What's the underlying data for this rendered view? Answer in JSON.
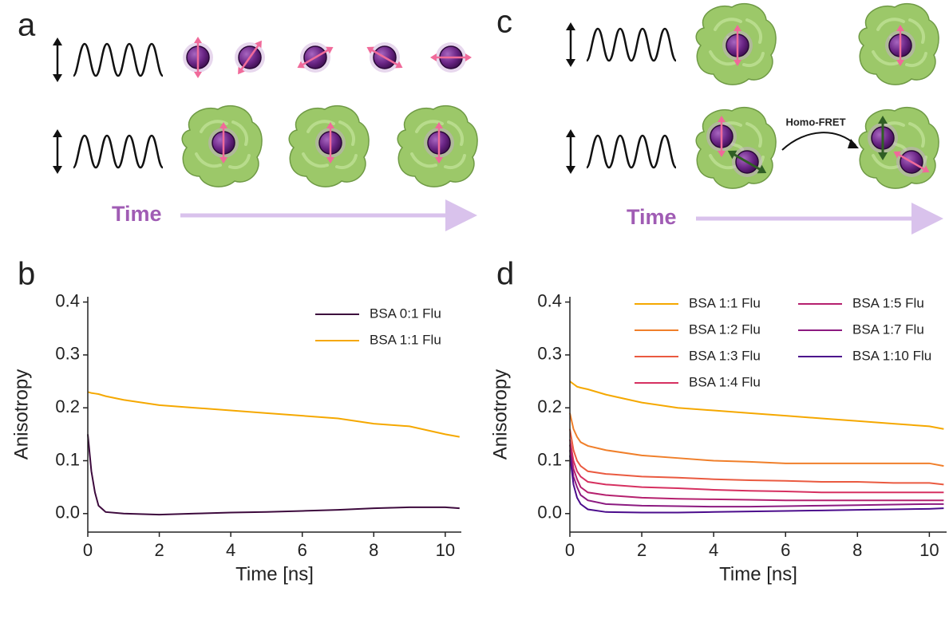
{
  "panel_labels": [
    "a",
    "b",
    "c",
    "d"
  ],
  "diagrams": {
    "a": {
      "time_label": "Time"
    },
    "c": {
      "time_label": "Time",
      "transfer_label": "Homo-FRET"
    }
  },
  "chart_data": [
    {
      "type": "line",
      "x_label": "Time [ns]",
      "y_label": "Anisotropy",
      "legend": "upper right",
      "x": [
        0,
        0.1,
        0.2,
        0.3,
        0.5,
        1,
        2,
        3,
        4,
        5,
        6,
        7,
        8,
        9,
        10,
        10.4
      ],
      "xlim": [
        0,
        10.45
      ],
      "xticks": [
        0,
        2,
        4,
        6,
        8,
        10
      ],
      "ylim": [
        -0.035,
        0.41
      ],
      "yticks": [
        {
          "value": 0,
          "label": "0.0"
        },
        0.1,
        0.2,
        0.3,
        0.4
      ],
      "series": [
        {
          "name": "BSA 0:1 Flu",
          "color": "#3d0a3d",
          "values": [
            0.15,
            0.08,
            0.04,
            0.015,
            0.003,
            0,
            -0.002,
            0,
            0.002,
            0.003,
            0.005,
            0.007,
            0.01,
            0.012,
            0.012,
            0.01
          ]
        },
        {
          "name": "BSA 1:1 Flu",
          "color": "#f5a800",
          "values": [
            0.23,
            0.228,
            0.227,
            0.226,
            0.222,
            0.215,
            0.205,
            0.2,
            0.195,
            0.19,
            0.185,
            0.18,
            0.17,
            0.165,
            0.15,
            0.145
          ]
        }
      ]
    },
    {
      "type": "line",
      "x_label": "Time [ns]",
      "y_label": "Anisotropy",
      "legend": "upper right",
      "x": [
        0,
        0.1,
        0.2,
        0.3,
        0.5,
        1,
        2,
        3,
        4,
        5,
        6,
        7,
        8,
        9,
        10,
        10.4
      ],
      "xlim": [
        0,
        10.48
      ],
      "xticks": [
        0,
        2,
        4,
        6,
        8,
        10
      ],
      "ylim": [
        -0.035,
        0.41
      ],
      "yticks": [
        {
          "value": 0,
          "label": "0.0"
        },
        0.1,
        0.2,
        0.3,
        0.4
      ],
      "series": [
        {
          "name": "BSA 1:1 Flu",
          "color": "#f5a800",
          "values": [
            0.25,
            0.245,
            0.24,
            0.238,
            0.235,
            0.225,
            0.21,
            0.2,
            0.195,
            0.19,
            0.185,
            0.18,
            0.175,
            0.17,
            0.165,
            0.16
          ]
        },
        {
          "name": "BSA 1:2 Flu",
          "color": "#f07f2a",
          "values": [
            0.19,
            0.16,
            0.145,
            0.135,
            0.128,
            0.12,
            0.11,
            0.105,
            0.1,
            0.098,
            0.095,
            0.095,
            0.095,
            0.095,
            0.095,
            0.09
          ]
        },
        {
          "name": "BSA 1:3 Flu",
          "color": "#ea5a40",
          "values": [
            0.16,
            0.12,
            0.1,
            0.09,
            0.08,
            0.075,
            0.07,
            0.068,
            0.065,
            0.063,
            0.062,
            0.06,
            0.06,
            0.058,
            0.058,
            0.055
          ]
        },
        {
          "name": "BSA 1:4 Flu",
          "color": "#d63060",
          "values": [
            0.14,
            0.1,
            0.08,
            0.07,
            0.06,
            0.055,
            0.05,
            0.048,
            0.045,
            0.043,
            0.042,
            0.04,
            0.04,
            0.04,
            0.04,
            0.04
          ]
        },
        {
          "name": "BSA 1:5 Flu",
          "color": "#b5206e",
          "values": [
            0.13,
            0.085,
            0.065,
            0.05,
            0.04,
            0.035,
            0.03,
            0.028,
            0.027,
            0.026,
            0.025,
            0.025,
            0.025,
            0.025,
            0.025,
            0.025
          ]
        },
        {
          "name": "BSA 1:7 Flu",
          "color": "#8c1a80",
          "values": [
            0.12,
            0.07,
            0.05,
            0.035,
            0.025,
            0.018,
            0.015,
            0.014,
            0.013,
            0.013,
            0.014,
            0.015,
            0.016,
            0.017,
            0.018,
            0.018
          ]
        },
        {
          "name": "BSA 1:10 Flu",
          "color": "#4b0c8c",
          "values": [
            0.11,
            0.055,
            0.03,
            0.018,
            0.008,
            0.003,
            0.002,
            0.002,
            0.003,
            0.004,
            0.005,
            0.006,
            0.007,
            0.008,
            0.009,
            0.01
          ]
        }
      ]
    }
  ]
}
